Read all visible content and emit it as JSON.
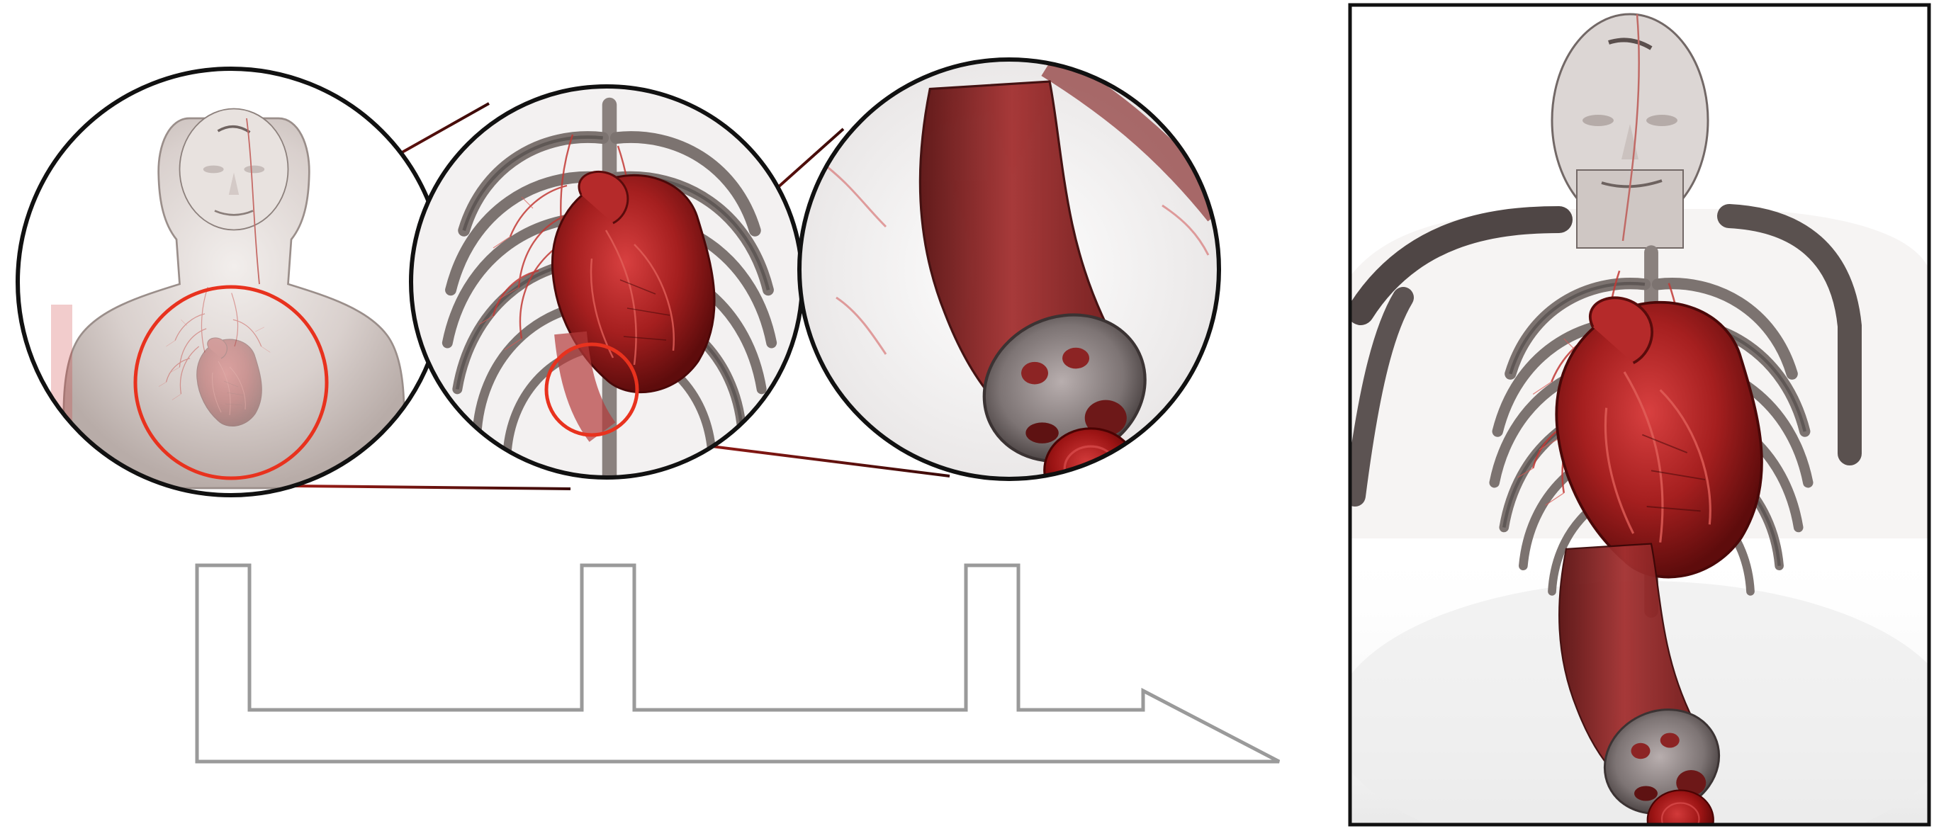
{
  "figure": {
    "panels": [
      {
        "id": "panel-1",
        "subject": "full-body"
      },
      {
        "id": "panel-2",
        "subject": "rib-cage-and-heart"
      },
      {
        "id": "panel-3",
        "subject": "vessel-cross-section"
      }
    ],
    "composite": {
      "subject": "combined-focus-context-rendering"
    },
    "colors": {
      "highlight_ring": "#e8321e",
      "zoom_line": "#6b1410",
      "panel_border": "#111111",
      "flow_arrow": "#9a9a9a",
      "tissue_red": "#9e1c1c",
      "bone_gray": "#8a8280"
    }
  }
}
